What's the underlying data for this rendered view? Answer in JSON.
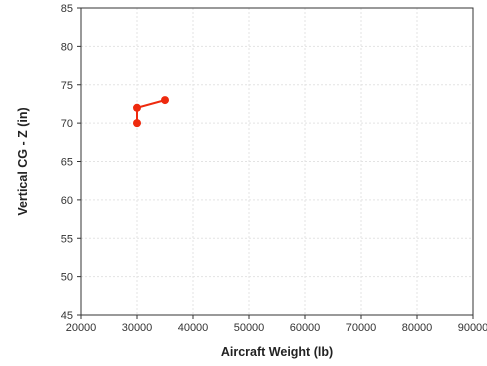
{
  "chart_data": {
    "type": "line",
    "title": "",
    "xlabel": "Aircraft Weight (lb)",
    "ylabel": "Vertical CG - Z (in)",
    "xlim": [
      20000,
      90000
    ],
    "ylim": [
      45,
      85
    ],
    "x_ticks": [
      "20000",
      "30000",
      "40000",
      "50000",
      "60000",
      "70000",
      "80000",
      "90000"
    ],
    "y_ticks": [
      "45",
      "50",
      "55",
      "60",
      "65",
      "70",
      "75",
      "80",
      "85"
    ],
    "grid": true,
    "legend": "none",
    "series": [
      {
        "color": "#ee2a0e",
        "points": [
          {
            "x": 30000,
            "y": 70
          },
          {
            "x": 30000,
            "y": 72
          },
          {
            "x": 35000,
            "y": 73
          }
        ]
      }
    ]
  }
}
